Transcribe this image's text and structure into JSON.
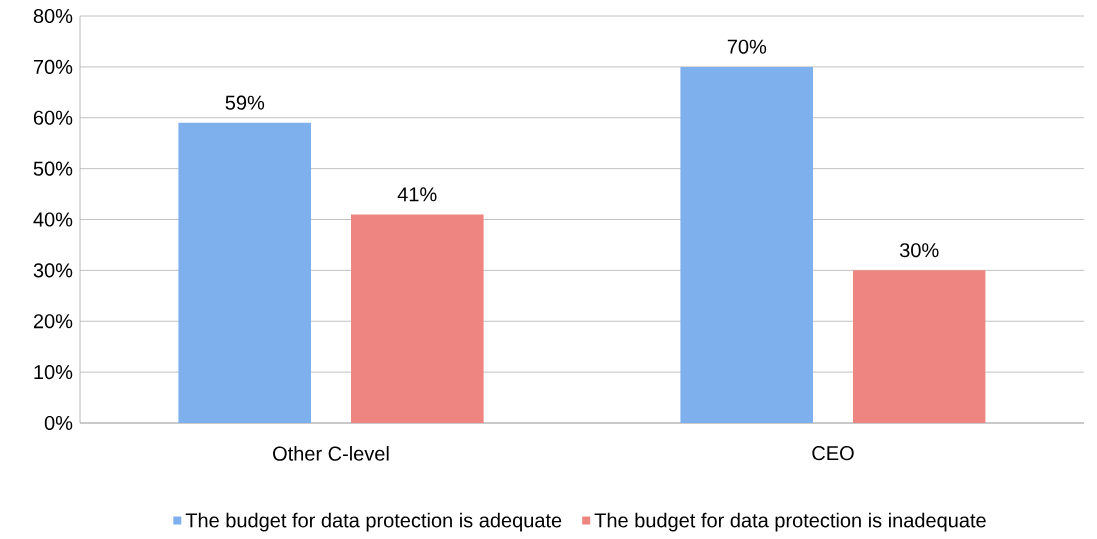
{
  "chart_data": {
    "type": "bar",
    "categories": [
      "Other C-level",
      "CEO"
    ],
    "series": [
      {
        "name": "The budget for data protection is adequate",
        "color": "#7fb0ee",
        "values": [
          59,
          70
        ],
        "value_labels": [
          "59%",
          "70%"
        ]
      },
      {
        "name": "The budget for data protection is inadequate",
        "color": "#ee8580",
        "values": [
          41,
          30
        ],
        "value_labels": [
          "41%",
          "30%"
        ]
      }
    ],
    "ylim": [
      0,
      80
    ],
    "yticks": [
      {
        "value": 0,
        "label": "0%"
      },
      {
        "value": 10,
        "label": "10%"
      },
      {
        "value": 20,
        "label": "20%"
      },
      {
        "value": 30,
        "label": "30%"
      },
      {
        "value": 40,
        "label": "40%"
      },
      {
        "value": 50,
        "label": "50%"
      },
      {
        "value": 60,
        "label": "60%"
      },
      {
        "value": 70,
        "label": "70%"
      },
      {
        "value": 80,
        "label": "80%"
      }
    ],
    "grid": "y",
    "legend": "bottom"
  }
}
